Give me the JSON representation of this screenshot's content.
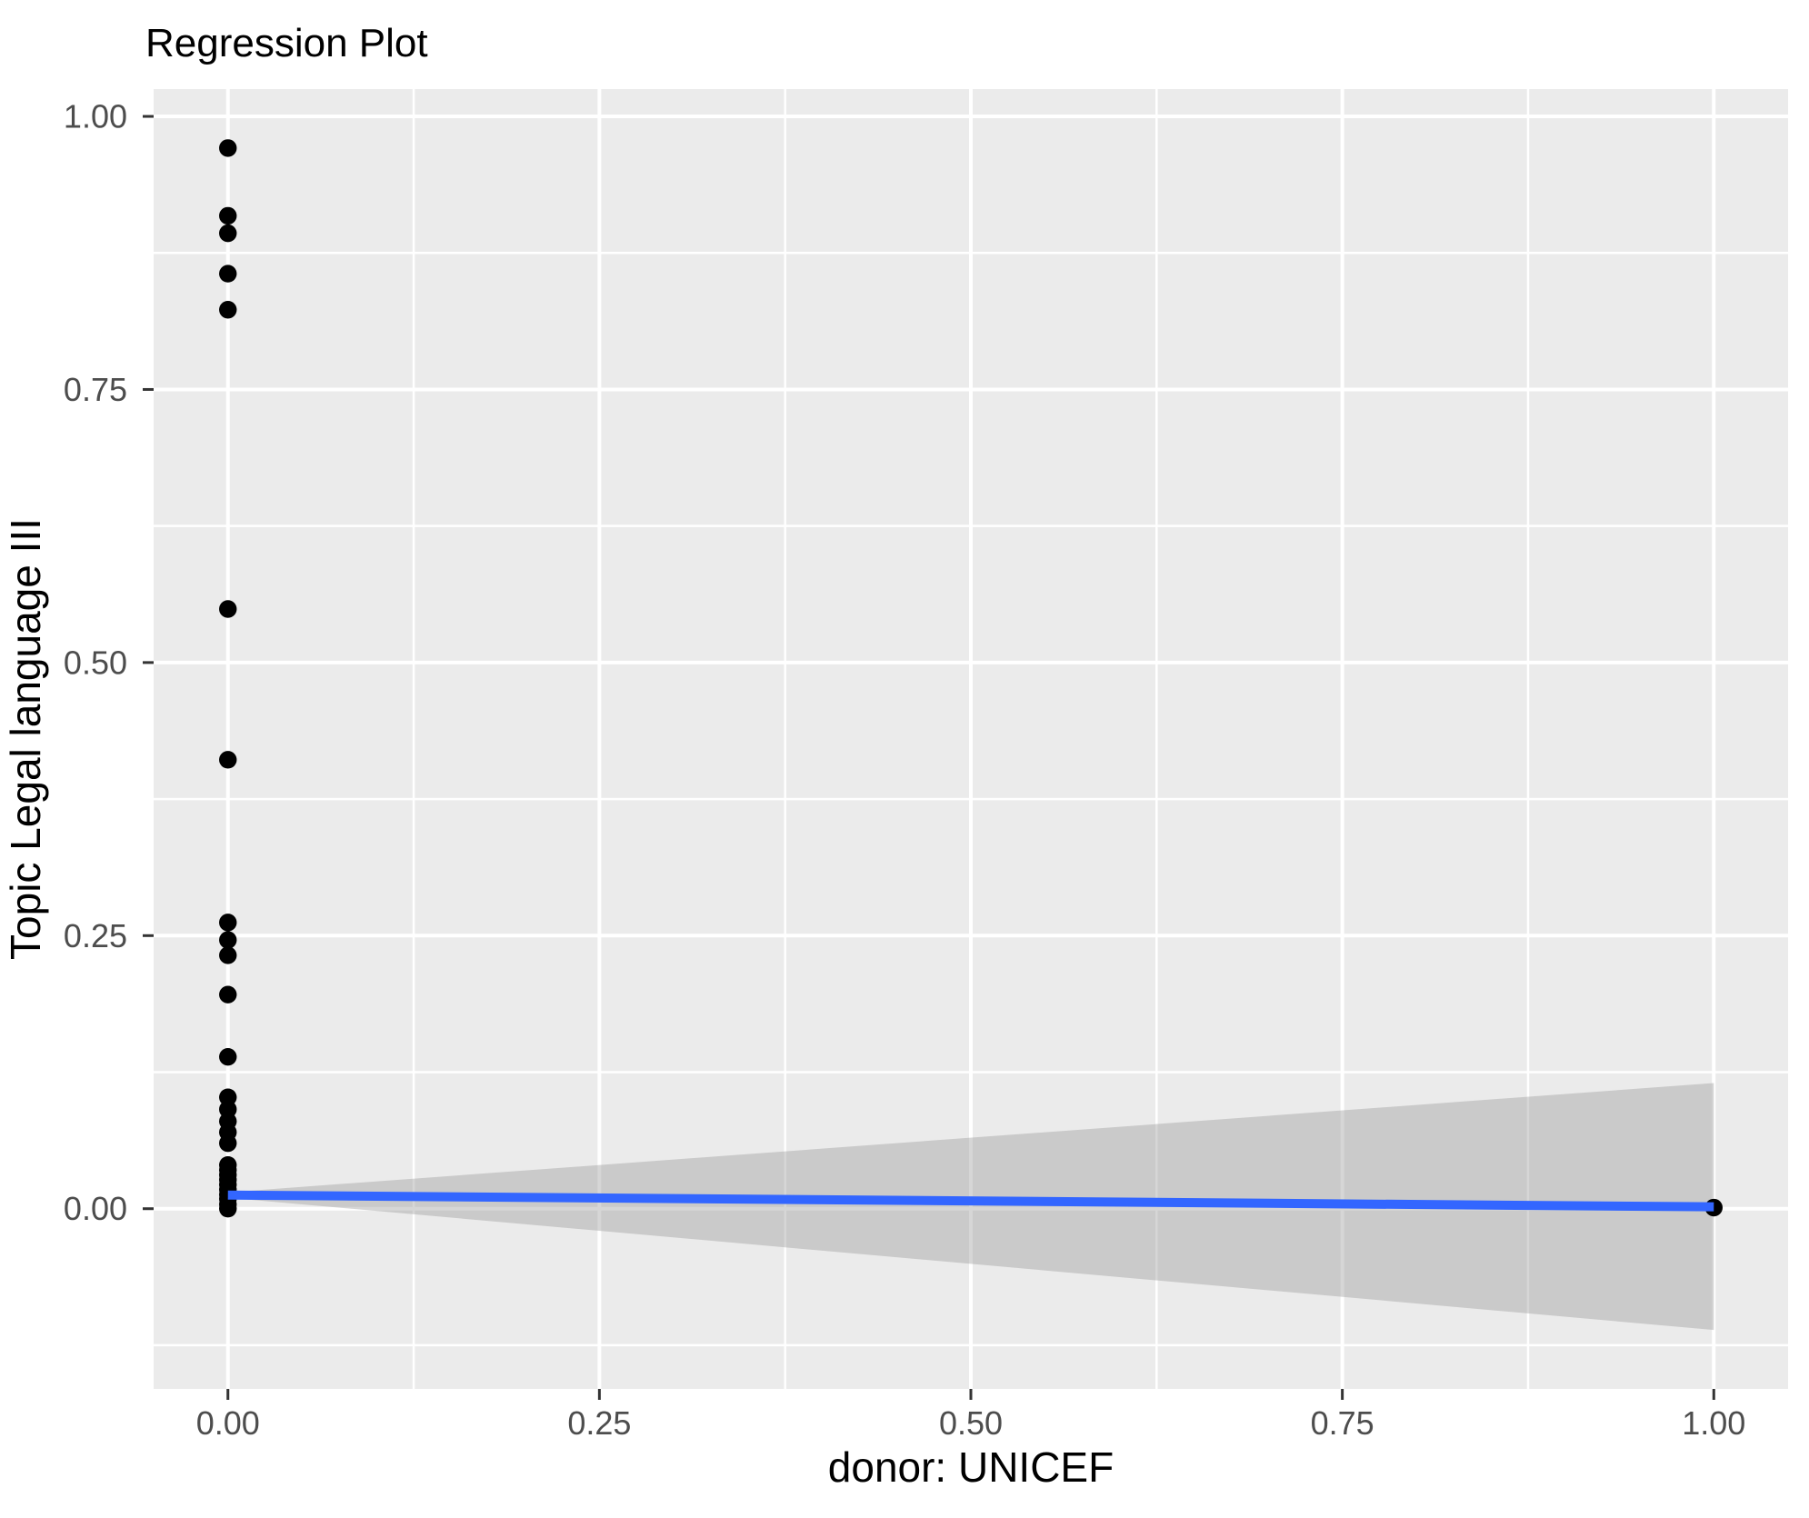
{
  "title": "Regression Plot",
  "chart_data": {
    "type": "scatter",
    "title": "Regression Plot",
    "xlabel": "donor: UNICEF",
    "ylabel": "Topic Legal language III",
    "xlim": [
      -0.05,
      1.05
    ],
    "ylim": [
      -0.165,
      1.025
    ],
    "grid": true,
    "legend": "none",
    "x_ticks": [
      0.0,
      0.25,
      0.5,
      0.75,
      1.0
    ],
    "y_ticks": [
      0.0,
      0.25,
      0.5,
      0.75,
      1.0
    ],
    "x_tick_labels": [
      "0.00",
      "0.25",
      "0.50",
      "0.75",
      "1.00"
    ],
    "y_tick_labels": [
      "0.00",
      "0.25",
      "0.50",
      "0.75",
      "1.00"
    ],
    "x_minor_ticks": [
      0.125,
      0.375,
      0.625,
      0.875
    ],
    "y_minor_ticks": [
      -0.125,
      0.125,
      0.375,
      0.625,
      0.875
    ],
    "points": [
      [
        0,
        0.971
      ],
      [
        0,
        0.909
      ],
      [
        0,
        0.893
      ],
      [
        0,
        0.856
      ],
      [
        0,
        0.823
      ],
      [
        0,
        0.549
      ],
      [
        0,
        0.411
      ],
      [
        0,
        0.262
      ],
      [
        0,
        0.246
      ],
      [
        0,
        0.232
      ],
      [
        0,
        0.196
      ],
      [
        0,
        0.139
      ],
      [
        0,
        0.102
      ],
      [
        0,
        0.091
      ],
      [
        0,
        0.08
      ],
      [
        0,
        0.07
      ],
      [
        0,
        0.06
      ],
      [
        0,
        0.04
      ],
      [
        0,
        0.0355
      ],
      [
        0,
        0.031
      ],
      [
        0,
        0.0265
      ],
      [
        0,
        0.022
      ],
      [
        0,
        0.0175
      ],
      [
        0,
        0.013
      ],
      [
        0,
        0.009
      ],
      [
        0,
        0.004
      ],
      [
        0,
        0.0
      ],
      [
        1,
        0.001
      ]
    ],
    "regression_line": {
      "x": [
        0,
        1
      ],
      "y": [
        0.0125,
        0.0017
      ]
    },
    "confidence_band": {
      "x": [
        0,
        1
      ],
      "upper": [
        0.015,
        0.115
      ],
      "lower": [
        0.01,
        -0.111
      ]
    }
  },
  "colors": {
    "panel_background": "#EBEBEB",
    "grid": "#FFFFFF",
    "band": "#999999",
    "line": "#3366FF",
    "point": "#000000",
    "axis_text": "#4D4D4D",
    "tick_mark": "#333333",
    "title_color": "#000000"
  }
}
